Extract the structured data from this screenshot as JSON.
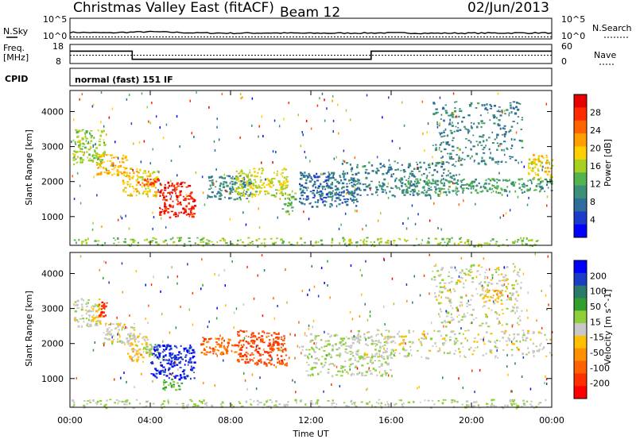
{
  "header": {
    "title": "Christmas Valley East (fitACF)",
    "beam": "Beam 12",
    "date": "02/Jun/2013"
  },
  "colors": {
    "power_scale": [
      "#0000ff",
      "#1a3cc8",
      "#2f6e9a",
      "#3c8f78",
      "#52b44e",
      "#a8d020",
      "#ffd000",
      "#ffa000",
      "#ff6400",
      "#ff2a00",
      "#e60000"
    ],
    "velocity_scale": [
      "#0000ff",
      "#1a3cc8",
      "#2a7a6a",
      "#2fa02f",
      "#8fd03a",
      "#c8c8c8",
      "#ffc000",
      "#ff9000",
      "#ff6000",
      "#ff3000",
      "#ff0000"
    ]
  },
  "noise_panel": {
    "left_label": "N.Sky",
    "right_label": "N.Search",
    "ticks_left": [
      "10^5",
      "10^0"
    ],
    "ticks_right": [
      "10^5",
      "10^0"
    ]
  },
  "freq_panel": {
    "left_label_top": "Freq.",
    "left_label_bottom": "[MHz]",
    "right_label": "Nave",
    "ticks_left": [
      "18",
      "8"
    ],
    "ticks_right": [
      "60",
      "0"
    ]
  },
  "cpid": {
    "label": "CPID",
    "value": "normal (fast) 151 IF"
  },
  "power_panel": {
    "ylabel": "Slant Range [km]",
    "yticks": [
      "4000",
      "3000",
      "2000",
      "1000"
    ],
    "colorbar_label": "Power [dB]",
    "colorbar_ticks": [
      "28",
      "24",
      "20",
      "16",
      "12",
      "8",
      "4"
    ]
  },
  "velocity_panel": {
    "ylabel": "Slant Range [km]",
    "yticks": [
      "4000",
      "3000",
      "2000",
      "1000"
    ],
    "colorbar_label": "Velocity [m s^-1]",
    "colorbar_ticks": [
      "200",
      "100",
      "50",
      "15",
      "-15",
      "-50",
      "-100",
      "-200"
    ]
  },
  "x_axis": {
    "label": "Time UT",
    "ticks": [
      "00:00",
      "04:00",
      "08:00",
      "12:00",
      "16:00",
      "20:00",
      "00:00"
    ]
  },
  "chart_data": [
    {
      "type": "line",
      "title": "N.Sky / N.Search",
      "x": [
        0,
        2,
        4,
        6,
        8,
        10,
        12,
        14,
        16,
        18,
        20,
        22,
        24
      ],
      "series": [
        {
          "name": "N.Sky",
          "values": [
            40,
            30,
            55,
            30,
            25,
            28,
            24,
            26,
            30,
            24,
            26,
            28,
            30
          ]
        },
        {
          "name": "N.Search",
          "values": [
            3,
            3,
            3,
            3,
            3,
            3,
            3,
            3,
            3,
            3,
            3,
            3,
            3
          ]
        }
      ],
      "ylim": [
        1,
        100000
      ]
    },
    {
      "type": "line",
      "title": "Freq. [MHz] / Nave",
      "x": [
        0,
        3.1,
        3.1,
        15.0,
        15.0,
        24
      ],
      "series": [
        {
          "name": "Freq.",
          "values": [
            14.5,
            14.5,
            10.2,
            10.2,
            14.5,
            14.5
          ]
        },
        {
          "name": "Nave",
          "values": [
            26,
            26,
            26,
            26,
            26,
            26
          ]
        }
      ],
      "ylim": [
        8,
        18
      ]
    },
    {
      "type": "heatmap",
      "title": "Power [dB]",
      "xlabel": "Time UT",
      "ylabel": "Slant Range [km]",
      "xlim": [
        0,
        24
      ],
      "ylim": [
        180,
        4600
      ],
      "clim": [
        0,
        30
      ],
      "regions": [
        {
          "t0": 0.1,
          "t1": 1.7,
          "r0": 2500,
          "r1": 3500,
          "value": 14
        },
        {
          "t0": 1.3,
          "t1": 2.8,
          "r0": 2200,
          "r1": 2800,
          "value": 20
        },
        {
          "t0": 2.6,
          "t1": 4.3,
          "r0": 1600,
          "r1": 2400,
          "value": 18
        },
        {
          "t0": 3.3,
          "t1": 4.5,
          "r0": 1900,
          "r1": 2100,
          "value": 26
        },
        {
          "t0": 4.4,
          "t1": 6.2,
          "r0": 1000,
          "r1": 2000,
          "value": 28
        },
        {
          "t0": 6.8,
          "t1": 9.0,
          "r0": 1500,
          "r1": 2200,
          "value": 8
        },
        {
          "t0": 8.2,
          "t1": 10.8,
          "r0": 1600,
          "r1": 2400,
          "value": 16
        },
        {
          "t0": 10.5,
          "t1": 11.2,
          "r0": 1100,
          "r1": 1700,
          "value": 12
        },
        {
          "t0": 11.4,
          "t1": 14.3,
          "r0": 1300,
          "r1": 2300,
          "value": 6
        },
        {
          "t0": 13.5,
          "t1": 19.5,
          "r0": 1600,
          "r1": 2600,
          "value": 8
        },
        {
          "t0": 16.5,
          "t1": 24.0,
          "r0": 1700,
          "r1": 2100,
          "value": 10
        },
        {
          "t0": 18.0,
          "t1": 22.5,
          "r0": 2500,
          "r1": 4300,
          "value": 8
        },
        {
          "t0": 22.8,
          "t1": 24.0,
          "r0": 2100,
          "r1": 2800,
          "value": 18
        },
        {
          "t0": 0.0,
          "t1": 24.0,
          "r0": 180,
          "r1": 420,
          "value": 14
        }
      ]
    },
    {
      "type": "heatmap",
      "title": "Velocity [m s^-1]",
      "xlabel": "Time UT",
      "ylabel": "Slant Range [km]",
      "xlim": [
        0,
        24
      ],
      "ylim": [
        180,
        4600
      ],
      "clim": [
        -250,
        250
      ],
      "regions": [
        {
          "t0": 0.1,
          "t1": 1.5,
          "r0": 2500,
          "r1": 3300,
          "value": 0
        },
        {
          "t0": 1.4,
          "t1": 1.8,
          "r0": 2800,
          "r1": 3200,
          "value": -200
        },
        {
          "t0": 1.6,
          "t1": 3.2,
          "r0": 2000,
          "r1": 2600,
          "value": 0
        },
        {
          "t0": 2.8,
          "t1": 4.0,
          "r0": 1500,
          "r1": 2300,
          "value": -40
        },
        {
          "t0": 3.6,
          "t1": 4.4,
          "r0": 1600,
          "r1": 2000,
          "value": 50
        },
        {
          "t0": 4.0,
          "t1": 6.2,
          "r0": 1000,
          "r1": 2000,
          "value": 220
        },
        {
          "t0": 4.6,
          "t1": 5.6,
          "r0": 700,
          "r1": 1000,
          "value": 80
        },
        {
          "t0": 6.5,
          "t1": 8.5,
          "r0": 1700,
          "r1": 2200,
          "value": -150
        },
        {
          "t0": 8.3,
          "t1": 10.8,
          "r0": 1400,
          "r1": 2400,
          "value": -180
        },
        {
          "t0": 11.5,
          "t1": 16.0,
          "r0": 1100,
          "r1": 2300,
          "value": 20
        },
        {
          "t0": 14.0,
          "t1": 24.0,
          "r0": 1600,
          "r1": 2400,
          "value": 0
        },
        {
          "t0": 18.0,
          "t1": 22.5,
          "r0": 2500,
          "r1": 4300,
          "value": 0
        },
        {
          "t0": 20.5,
          "t1": 21.5,
          "r0": 3200,
          "r1": 3600,
          "value": -60
        },
        {
          "t0": 0.0,
          "t1": 24.0,
          "r0": 180,
          "r1": 420,
          "value": 20
        }
      ]
    }
  ]
}
